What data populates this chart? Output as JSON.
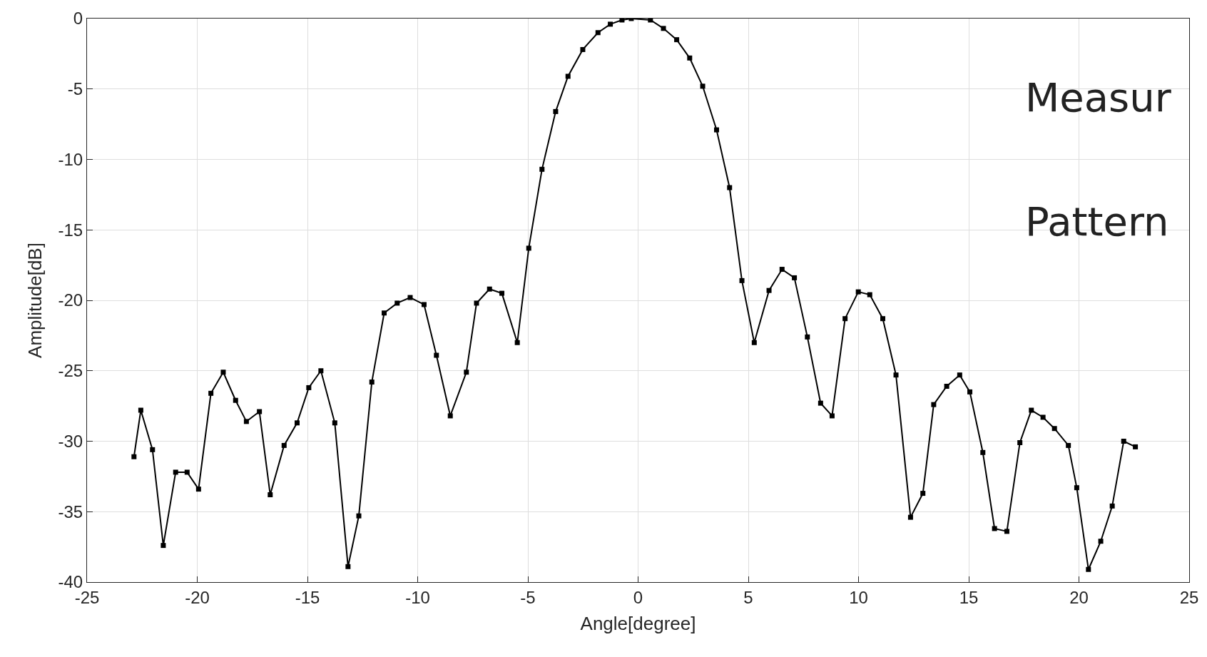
{
  "chart_data": {
    "type": "line",
    "xlabel": "Angle[degree]",
    "ylabel": "Amplitude[dB]",
    "annotations": [
      "Measur",
      "Pattern"
    ],
    "x": [
      -22.87,
      -22.56,
      -22.03,
      -21.54,
      -20.98,
      -20.46,
      -19.94,
      -19.38,
      -18.82,
      -18.26,
      -17.77,
      -17.18,
      -16.69,
      -16.06,
      -15.47,
      -14.94,
      -14.39,
      -13.76,
      -13.16,
      -12.67,
      -12.08,
      -11.52,
      -10.93,
      -10.34,
      -9.71,
      -9.15,
      -8.52,
      -7.79,
      -7.33,
      -6.74,
      -6.18,
      -5.48,
      -4.96,
      -4.36,
      -3.74,
      -3.18,
      -2.51,
      -1.82,
      -1.26,
      -0.73,
      -0.31,
      0.56,
      1.15,
      1.75,
      2.34,
      2.93,
      3.56,
      4.15,
      4.71,
      5.27,
      5.94,
      6.53,
      7.09,
      7.68,
      8.28,
      8.8,
      9.39,
      9.99,
      10.51,
      11.1,
      11.7,
      12.36,
      12.92,
      13.41,
      14.0,
      14.59,
      15.05,
      15.64,
      16.17,
      16.73,
      17.32,
      17.84,
      18.37,
      18.89,
      19.52,
      19.9,
      20.43,
      20.99,
      21.51,
      22.03,
      22.56
    ],
    "series": [
      {
        "color": "#000000",
        "values": [
          -31.1,
          -27.8,
          -30.6,
          -37.4,
          -32.2,
          -32.2,
          -33.4,
          -26.6,
          -25.1,
          -27.1,
          -28.6,
          -27.9,
          -33.8,
          -30.3,
          -28.7,
          -26.2,
          -25.0,
          -28.7,
          -38.9,
          -35.3,
          -25.8,
          -20.9,
          -20.2,
          -19.8,
          -20.3,
          -23.9,
          -28.2,
          -25.1,
          -20.2,
          -19.2,
          -19.5,
          -23.0,
          -16.3,
          -10.7,
          -6.6,
          -4.1,
          -2.2,
          -1.0,
          -0.4,
          -0.1,
          0.0,
          -0.1,
          -0.7,
          -1.5,
          -2.8,
          -4.8,
          -7.9,
          -12.0,
          -18.6,
          -23.0,
          -19.3,
          -17.8,
          -18.4,
          -22.6,
          -27.3,
          -28.2,
          -21.3,
          -19.4,
          -19.6,
          -21.3,
          -25.3,
          -35.4,
          -33.7,
          -27.4,
          -26.1,
          -25.3,
          -26.5,
          -30.8,
          -36.2,
          -36.4,
          -30.1,
          -27.8,
          -28.3,
          -29.1,
          -30.3,
          -33.3,
          -39.1,
          -37.1,
          -34.6,
          -30.0,
          -30.4
        ]
      }
    ],
    "xlim": [
      -25,
      25
    ],
    "xticks": [
      -25,
      -20,
      -15,
      -10,
      -5,
      0,
      5,
      10,
      15,
      20,
      25
    ],
    "ylim": [
      -40,
      0
    ],
    "yticks": [
      -40,
      -35,
      -30,
      -25,
      -20,
      -15,
      -10,
      -5,
      0
    ],
    "grid": true,
    "marker": "square",
    "line_style": "solid"
  }
}
